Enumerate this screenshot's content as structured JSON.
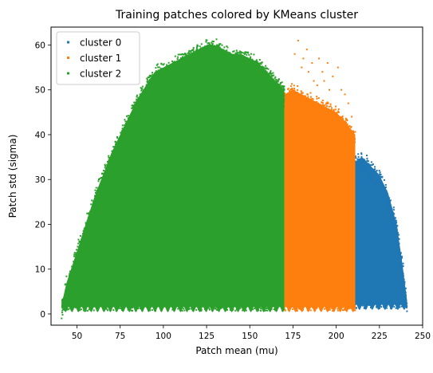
{
  "chart_data": {
    "type": "scatter",
    "title": "Training patches colored by KMeans cluster",
    "xlabel": "Patch mean (mu)",
    "ylabel": "Patch std (sigma)",
    "xlim": [
      35,
      250
    ],
    "ylim": [
      -2.5,
      64
    ],
    "xticks": [
      50,
      75,
      100,
      125,
      150,
      175,
      200,
      225,
      250
    ],
    "yticks": [
      0,
      10,
      20,
      30,
      40,
      50,
      60
    ],
    "grid": false,
    "legend_position": "top-left",
    "series": [
      {
        "name": "cluster 0",
        "color": "#1f77b4",
        "x_range": [
          211,
          241
        ],
        "envelope": [
          [
            211,
            34
          ],
          [
            215,
            35
          ],
          [
            220,
            33
          ],
          [
            225,
            31
          ],
          [
            230,
            27
          ],
          [
            235,
            20
          ],
          [
            238,
            12
          ],
          [
            241,
            3
          ]
        ],
        "floor": 1.5
      },
      {
        "name": "cluster 1",
        "color": "#ff7f0e",
        "x_range": [
          170,
          211
        ],
        "envelope": [
          [
            170,
            49
          ],
          [
            175,
            50
          ],
          [
            180,
            49
          ],
          [
            185,
            48
          ],
          [
            190,
            47
          ],
          [
            195,
            46
          ],
          [
            200,
            45
          ],
          [
            205,
            43
          ],
          [
            211,
            40
          ]
        ],
        "floor": 1.0,
        "outliers": [
          [
            178,
            61
          ],
          [
            176,
            58
          ],
          [
            181,
            57
          ],
          [
            183,
            59
          ],
          [
            186,
            56
          ],
          [
            190,
            57
          ],
          [
            192,
            54
          ],
          [
            195,
            56
          ],
          [
            198,
            53
          ],
          [
            201,
            55
          ],
          [
            187,
            52
          ],
          [
            184,
            54
          ],
          [
            203,
            50
          ],
          [
            205,
            49
          ],
          [
            189,
            51
          ],
          [
            193,
            52
          ],
          [
            196,
            50
          ],
          [
            180,
            55
          ],
          [
            207,
            47
          ],
          [
            209,
            44
          ]
        ]
      },
      {
        "name": "cluster 2",
        "color": "#2ca02c",
        "x_range": [
          41,
          170
        ],
        "envelope": [
          [
            41,
            2
          ],
          [
            44,
            7
          ],
          [
            50,
            14
          ],
          [
            55,
            20
          ],
          [
            60,
            26
          ],
          [
            65,
            31
          ],
          [
            70,
            36
          ],
          [
            75,
            40
          ],
          [
            80,
            44
          ],
          [
            85,
            48
          ],
          [
            90,
            51
          ],
          [
            95,
            54
          ],
          [
            100,
            55
          ],
          [
            105,
            56
          ],
          [
            110,
            57
          ],
          [
            115,
            58
          ],
          [
            120,
            59
          ],
          [
            125,
            60
          ],
          [
            130,
            60
          ],
          [
            135,
            59
          ],
          [
            140,
            58
          ],
          [
            145,
            58
          ],
          [
            150,
            57
          ],
          [
            155,
            56
          ],
          [
            160,
            54
          ],
          [
            165,
            52
          ],
          [
            170,
            50
          ]
        ],
        "floor": 1.0
      }
    ]
  }
}
